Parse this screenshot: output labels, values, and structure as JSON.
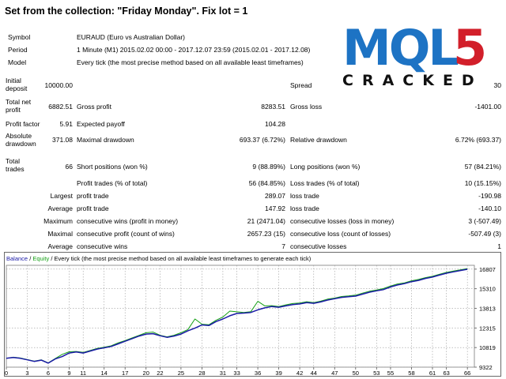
{
  "header": {
    "title": "Set from the collection: \"Friday Monday\".   Fix lot = 1"
  },
  "logo": {
    "text": "MQL5",
    "subtext": "CRACKED",
    "colors": {
      "blue": "#1d73c4",
      "red": "#d21f2a"
    }
  },
  "info": {
    "symbol_label": "Symbol",
    "symbol_value": "EURAUD (Euro vs Australian Dollar)",
    "period_label": "Period",
    "period_value": "1 Minute (M1) 2015.02.02 00:00 - 2017.12.07 23:59 (2015.02.01 - 2017.12.08)",
    "model_label": "Model",
    "model_value": "Every tick (the most precise method based on all available least timeframes)"
  },
  "stats": {
    "initial_deposit_label": "Initial deposit",
    "initial_deposit_value": "10000.00",
    "spread_label": "Spread",
    "spread_value": "30",
    "total_net_profit_label": "Total net profit",
    "total_net_profit_value": "6882.51",
    "gross_profit_label": "Gross profit",
    "gross_profit_value": "8283.51",
    "gross_loss_label": "Gross loss",
    "gross_loss_value": "-1401.00",
    "profit_factor_label": "Profit factor",
    "profit_factor_value": "5.91",
    "expected_payoff_label": "Expected payoff",
    "expected_payoff_value": "104.28",
    "absolute_drawdown_label": "Absolute drawdown",
    "absolute_drawdown_value": "371.08",
    "maximal_drawdown_label": "Maximal drawdown",
    "maximal_drawdown_value": "693.37 (6.72%)",
    "relative_drawdown_label": "Relative drawdown",
    "relative_drawdown_value": "6.72% (693.37)",
    "total_trades_label": "Total trades",
    "total_trades_value": "66",
    "short_positions_label": "Short positions (won %)",
    "short_positions_value": "9 (88.89%)",
    "long_positions_label": "Long positions (won %)",
    "long_positions_value": "57 (84.21%)",
    "profit_trades_label": "Profit trades (% of total)",
    "profit_trades_value": "56 (84.85%)",
    "loss_trades_label": "Loss trades (% of total)",
    "loss_trades_value": "10 (15.15%)",
    "largest_label": "Largest",
    "largest_profit_label": "profit trade",
    "largest_profit_value": "289.07",
    "largest_loss_label": "loss trade",
    "largest_loss_value": "-190.98",
    "average_label": "Average",
    "average_profit_label": "profit trade",
    "average_profit_value": "147.92",
    "average_loss_label": "loss trade",
    "average_loss_value": "-140.10",
    "maximum_label": "Maximum",
    "max_cons_wins_label": "consecutive wins (profit in money)",
    "max_cons_wins_value": "21 (2471.04)",
    "max_cons_losses_label": "consecutive losses (loss in money)",
    "max_cons_losses_value": "3 (-507.49)",
    "maximal_label": "Maximal",
    "maximal_cons_profit_label": "consecutive profit (count of wins)",
    "maximal_cons_profit_value": "2657.23 (15)",
    "maximal_cons_loss_label": "consecutive loss (count of losses)",
    "maximal_cons_loss_value": "-507.49 (3)",
    "average2_label": "Average",
    "avg_cons_wins_label": "consecutive wins",
    "avg_cons_wins_value": "7",
    "avg_cons_losses_label": "consecutive losses",
    "avg_cons_losses_value": "1"
  },
  "chart_header": {
    "balance": "Balance",
    "sep": " / ",
    "equity": "Equity",
    "rest": " / Every tick (the most precise method based on all available least timeframes to generate each tick)"
  },
  "chart_data": {
    "type": "line",
    "title": "",
    "xlabel": "",
    "ylabel": "",
    "xlim": [
      0,
      67
    ],
    "ylim": [
      9322,
      17100
    ],
    "grid": true,
    "x_ticks": [
      "0",
      "3",
      "6",
      "9",
      "11",
      "14",
      "17",
      "20",
      "22",
      "25",
      "28",
      "31",
      "33",
      "36",
      "39",
      "42",
      "44",
      "47",
      "50",
      "53",
      "55",
      "58",
      "61",
      "63",
      "66"
    ],
    "y_ticks": [
      "16807",
      "15310",
      "13813",
      "12315",
      "10819",
      "9322"
    ],
    "series": [
      {
        "name": "Balance",
        "color": "#1a1aa6",
        "x": [
          0,
          1,
          2,
          3,
          4,
          5,
          6,
          7,
          8,
          9,
          10,
          11,
          12,
          13,
          14,
          15,
          16,
          17,
          18,
          19,
          20,
          21,
          22,
          23,
          24,
          25,
          26,
          27,
          28,
          29,
          30,
          31,
          32,
          33,
          34,
          35,
          36,
          37,
          38,
          39,
          40,
          41,
          42,
          43,
          44,
          45,
          46,
          47,
          48,
          49,
          50,
          51,
          52,
          53,
          54,
          55,
          56,
          57,
          58,
          59,
          60,
          61,
          62,
          63,
          64,
          65,
          66
        ],
        "y": [
          10000,
          10060,
          10000,
          9880,
          9760,
          9860,
          9630,
          9950,
          10130,
          10400,
          10480,
          10400,
          10550,
          10700,
          10800,
          10900,
          11100,
          11300,
          11500,
          11700,
          11850,
          11880,
          11720,
          11600,
          11700,
          11850,
          12100,
          12300,
          12550,
          12500,
          12800,
          13000,
          13250,
          13420,
          13450,
          13500,
          13700,
          13850,
          13950,
          13900,
          14000,
          14100,
          14150,
          14250,
          14200,
          14300,
          14450,
          14550,
          14650,
          14700,
          14750,
          14900,
          15050,
          15150,
          15250,
          15450,
          15600,
          15700,
          15850,
          15950,
          16100,
          16200,
          16350,
          16500,
          16600,
          16700,
          16800
        ]
      },
      {
        "name": "Equity",
        "color": "#16a016",
        "x": [
          0,
          1,
          2,
          3,
          4,
          5,
          6,
          7,
          8,
          9,
          10,
          11,
          12,
          13,
          14,
          15,
          16,
          17,
          18,
          19,
          20,
          21,
          22,
          23,
          24,
          25,
          26,
          27,
          28,
          29,
          30,
          31,
          32,
          33,
          34,
          35,
          36,
          37,
          38,
          39,
          40,
          41,
          42,
          43,
          44,
          45,
          46,
          47,
          48,
          49,
          50,
          51,
          52,
          53,
          54,
          55,
          56,
          57,
          58,
          59,
          60,
          61,
          62,
          63,
          64,
          65,
          66
        ],
        "y": [
          10000,
          10080,
          10020,
          9900,
          9780,
          9880,
          9650,
          9980,
          10300,
          10500,
          10520,
          10450,
          10600,
          10760,
          10850,
          10950,
          11180,
          11350,
          11550,
          11750,
          11950,
          12000,
          11760,
          11640,
          11760,
          11950,
          12200,
          13000,
          12600,
          12560,
          12900,
          13150,
          13600,
          13550,
          13500,
          13560,
          14350,
          14000,
          14020,
          13950,
          14080,
          14180,
          14220,
          14320,
          14250,
          14360,
          14520,
          14600,
          14720,
          14760,
          14820,
          14980,
          15120,
          15220,
          15330,
          15520,
          15680,
          15760,
          15920,
          16020,
          16160,
          16260,
          16420,
          16560,
          16660,
          16750,
          16850
        ]
      }
    ]
  }
}
